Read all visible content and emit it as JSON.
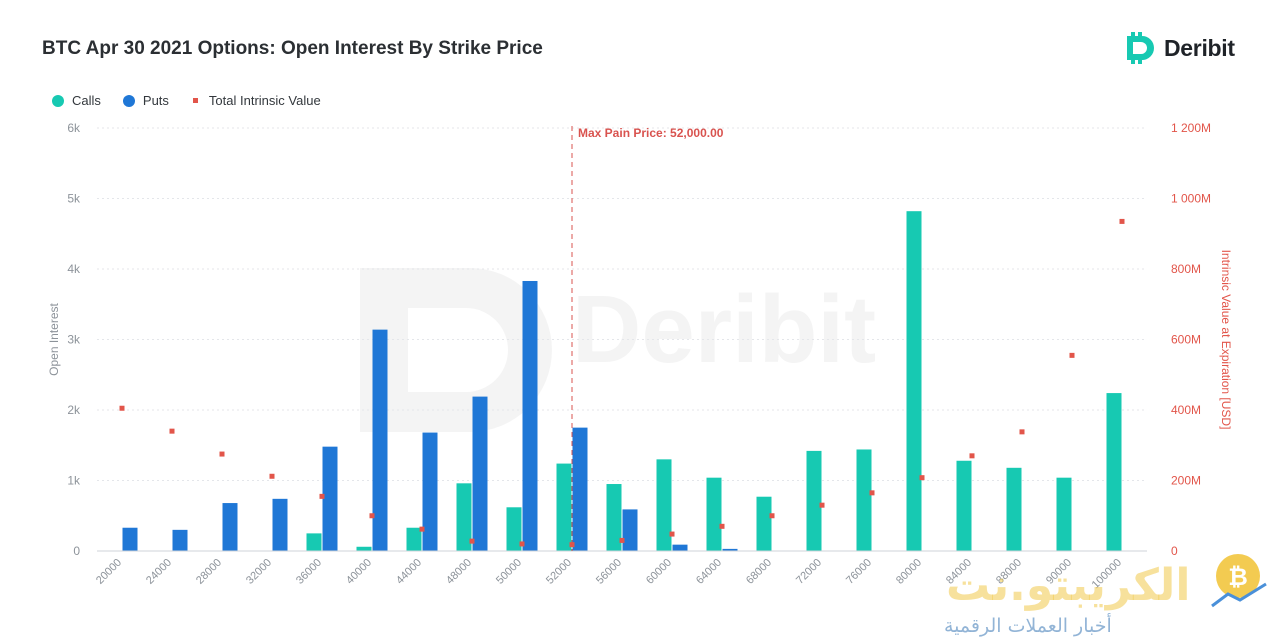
{
  "header": {
    "title": "BTC Apr 30 2021 Options: Open Interest By Strike Price",
    "brand_name": "Deribit"
  },
  "legend": {
    "calls_label": "Calls",
    "puts_label": "Puts",
    "intrinsic_label": "Total Intrinsic Value"
  },
  "watermark": {
    "main": "Deribit",
    "arabic_main": "الكريبتو.نت",
    "arabic_sub": "أخبار العملات الرقمية"
  },
  "colors": {
    "calls": "#17c9b2",
    "puts": "#1f77d6",
    "intrinsic": "#e2554a",
    "max_pain": "#d9534f"
  },
  "chart_data": {
    "type": "bar",
    "categories": [
      "20000",
      "24000",
      "28000",
      "32000",
      "36000",
      "40000",
      "44000",
      "48000",
      "50000",
      "52000",
      "56000",
      "60000",
      "64000",
      "68000",
      "72000",
      "76000",
      "80000",
      "84000",
      "88000",
      "90000",
      "100000"
    ],
    "series": [
      {
        "name": "Calls",
        "axis": "left",
        "values": [
          0,
          0,
          0,
          0,
          250,
          60,
          330,
          960,
          620,
          1240,
          950,
          1300,
          1040,
          770,
          1420,
          1440,
          4820,
          1280,
          1180,
          1040,
          2240
        ]
      },
      {
        "name": "Puts",
        "axis": "left",
        "values": [
          330,
          300,
          680,
          740,
          1480,
          3140,
          1680,
          2190,
          3830,
          1750,
          590,
          90,
          30,
          0,
          0,
          0,
          0,
          0,
          0,
          0,
          0
        ]
      },
      {
        "name": "Total Intrinsic Value",
        "axis": "right",
        "type": "scatter",
        "values": [
          405,
          340,
          275,
          212,
          155,
          100,
          62,
          28,
          20,
          18,
          30,
          48,
          70,
          100,
          130,
          165,
          208,
          270,
          338,
          555,
          935
        ]
      }
    ],
    "ylabel": "Open Interest",
    "ylim": [
      0,
      6000
    ],
    "yticks": [
      "0",
      "1k",
      "2k",
      "3k",
      "4k",
      "5k",
      "6k"
    ],
    "y2label": "Intrinsic Value at Expiration [USD]",
    "y2lim": [
      0,
      1200
    ],
    "y2ticks": [
      "0",
      "200M",
      "400M",
      "600M",
      "800M",
      "1 000M",
      "1 200M"
    ],
    "annotation": {
      "label": "Max Pain Price: 52,000.00",
      "x_category": "52000"
    },
    "grid": true,
    "legend_position": "top-left"
  }
}
